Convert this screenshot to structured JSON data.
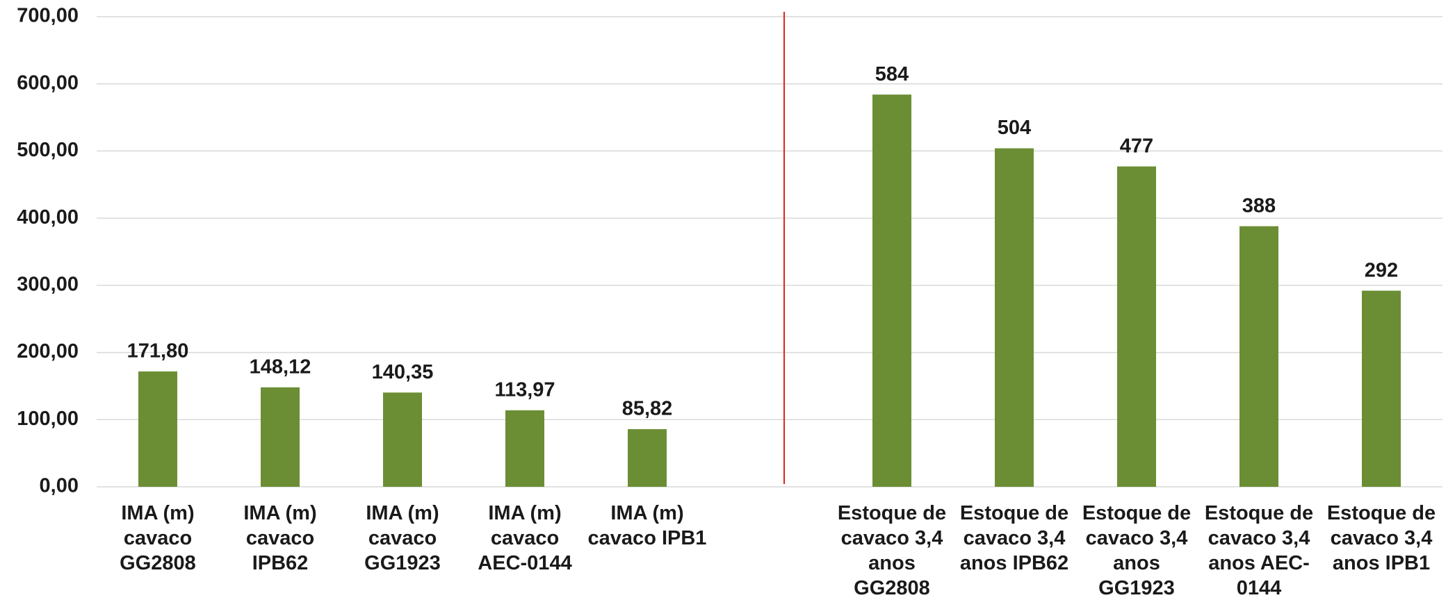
{
  "chart_data": {
    "type": "bar",
    "categories": [
      "IMA (m) cavaco GG2808",
      "IMA (m) cavaco IPB62",
      "IMA (m) cavaco GG1923",
      "IMA (m) cavaco AEC-0144",
      "IMA (m) cavaco IPB1",
      null,
      "Estoque de cavaco 3,4 anos GG2808",
      "Estoque de cavaco 3,4 anos IPB62",
      "Estoque de cavaco 3,4 anos GG1923",
      "Estoque de cavaco 3,4 anos AEC-0144",
      "Estoque de cavaco 3,4 anos IPB1"
    ],
    "values": [
      171.8,
      148.12,
      140.35,
      113.97,
      85.82,
      null,
      584,
      504,
      477,
      388,
      292
    ],
    "value_labels": [
      "171,80",
      "148,12",
      "140,35",
      "113,97",
      "85,82",
      null,
      "584",
      "504",
      "477",
      "388",
      "292"
    ],
    "color": "#6b8e34",
    "ylim": [
      0,
      700
    ],
    "yticks": [
      {
        "value": 0,
        "label": "0,00"
      },
      {
        "value": 100,
        "label": "100,00"
      },
      {
        "value": 200,
        "label": "200,00"
      },
      {
        "value": 300,
        "label": "300,00"
      },
      {
        "value": 400,
        "label": "400,00"
      },
      {
        "value": 500,
        "label": "500,00"
      },
      {
        "value": 600,
        "label": "600,00"
      },
      {
        "value": 700,
        "label": "700,00"
      }
    ],
    "grid": true
  }
}
